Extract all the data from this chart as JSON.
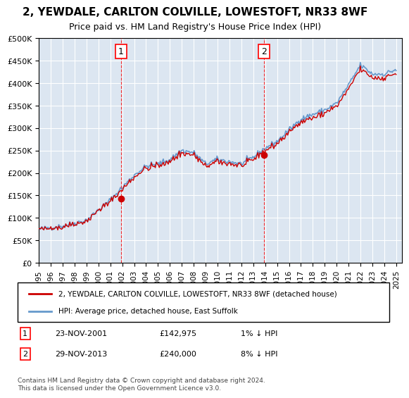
{
  "title": "2, YEWDALE, CARLTON COLVILLE, LOWESTOFT, NR33 8WF",
  "subtitle": "Price paid vs. HM Land Registry's House Price Index (HPI)",
  "ylabel_ticks": [
    "£0",
    "£50K",
    "£100K",
    "£150K",
    "£200K",
    "£250K",
    "£300K",
    "£350K",
    "£400K",
    "£450K",
    "£500K"
  ],
  "ytick_values": [
    0,
    50000,
    100000,
    150000,
    200000,
    250000,
    300000,
    350000,
    400000,
    450000,
    500000
  ],
  "ylim": [
    0,
    500000
  ],
  "xlim_start": 1995.0,
  "xlim_end": 2025.5,
  "sale1_x": 2001.9,
  "sale1_y": 142975,
  "sale1_label": "1",
  "sale1_date": "23-NOV-2001",
  "sale1_price": "£142,975",
  "sale1_hpi": "1% ↓ HPI",
  "sale2_x": 2013.9,
  "sale2_y": 240000,
  "sale2_label": "2",
  "sale2_date": "29-NOV-2013",
  "sale2_price": "£240,000",
  "sale2_hpi": "8% ↓ HPI",
  "property_color": "#cc0000",
  "hpi_color": "#6699cc",
  "background_color": "#dce6f1",
  "legend_property": "2, YEWDALE, CARLTON COLVILLE, LOWESTOFT, NR33 8WF (detached house)",
  "legend_hpi": "HPI: Average price, detached house, East Suffolk",
  "footnote": "Contains HM Land Registry data © Crown copyright and database right 2024.\nThis data is licensed under the Open Government Licence v3.0.",
  "x_ticks": [
    1995,
    1996,
    1997,
    1998,
    1999,
    2000,
    2001,
    2002,
    2003,
    2004,
    2005,
    2006,
    2007,
    2008,
    2009,
    2010,
    2011,
    2012,
    2013,
    2014,
    2015,
    2016,
    2017,
    2018,
    2019,
    2020,
    2021,
    2022,
    2023,
    2024,
    2025
  ]
}
